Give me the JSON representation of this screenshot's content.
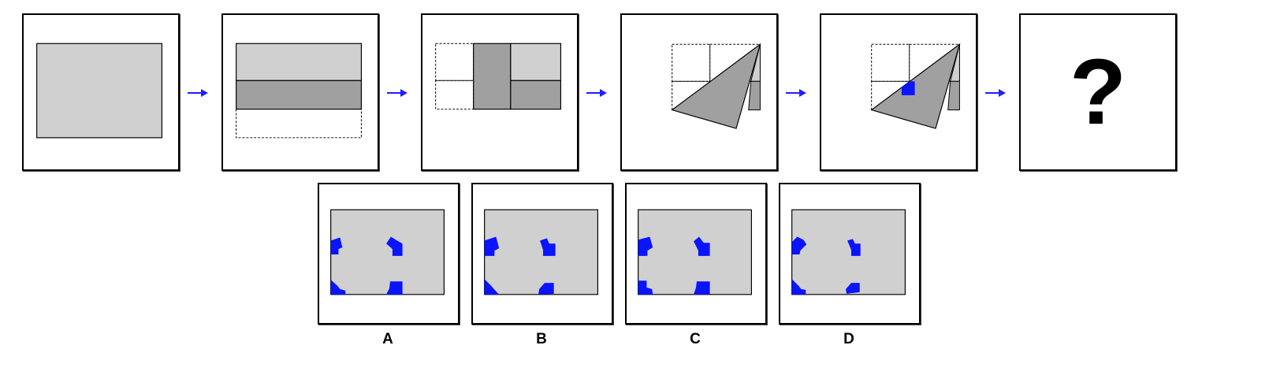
{
  "sequence": {
    "unknown_mark": "?",
    "arrow_color": "#1f1fff"
  },
  "options": [
    {
      "label": "A"
    },
    {
      "label": "B"
    },
    {
      "label": "C"
    },
    {
      "label": "D"
    }
  ],
  "colors": {
    "paper_light": "#d0d0d0",
    "paper_dark": "#a0a0a0",
    "punch_hole": "#0a14ff",
    "outline": "#000000"
  }
}
